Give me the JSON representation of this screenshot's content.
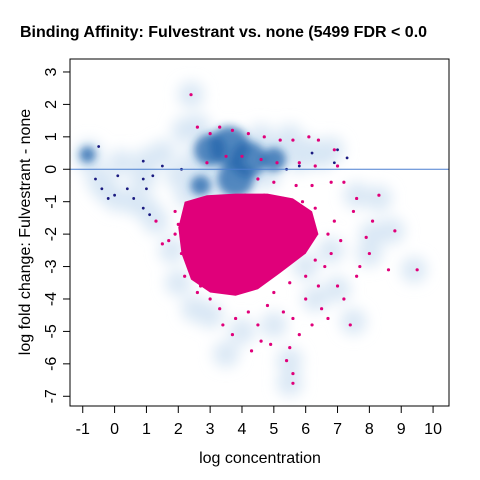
{
  "chart_data": {
    "type": "scatter",
    "title": "Binding Affinity: Fulvestrant vs. none (5499 FDR < 0.0",
    "xlabel": "log concentration",
    "ylabel": "log fold change: Fulvestrant - none",
    "xlim": [
      -1.4,
      10.5
    ],
    "ylim": [
      -7.3,
      3.4
    ],
    "x_ticks": [
      "-1",
      "0",
      "1",
      "2",
      "3",
      "4",
      "5",
      "6",
      "7",
      "8",
      "9",
      "10"
    ],
    "y_ticks": [
      "3",
      "2",
      "1",
      "0",
      "-1",
      "-2",
      "-3",
      "-4",
      "-5",
      "-6",
      "-7"
    ],
    "reference_line_y": 0,
    "grid": false,
    "legend": "none",
    "colors": {
      "density_light": "#d6e6f4",
      "density_dark": "#2166ac",
      "significant_points": "#e0007a",
      "nonsignificant_points": "#1a1a80",
      "reference_line": "#4a7fd0"
    },
    "series": [
      {
        "role": "density",
        "points": [
          [
            -0.8,
            0.5
          ],
          [
            -0.85,
            0.35
          ],
          [
            0.05,
            -0.9
          ],
          [
            0.6,
            -1.0
          ],
          [
            1.0,
            -1.2
          ],
          [
            2.3,
            -0.8
          ],
          [
            2.5,
            0.3
          ],
          [
            3.0,
            0.3
          ],
          [
            3.3,
            0.8
          ],
          [
            3.6,
            0.9
          ],
          [
            4.0,
            0.7
          ],
          [
            4.4,
            0.5
          ],
          [
            3.2,
            0.0
          ],
          [
            3.7,
            -0.2
          ],
          [
            4.2,
            -0.3
          ],
          [
            4.8,
            -0.2
          ],
          [
            5.0,
            0.6
          ],
          [
            5.8,
            0.3
          ],
          [
            6.5,
            0.4
          ],
          [
            2.7,
            -0.4
          ],
          [
            3.1,
            -0.6
          ],
          [
            2.4,
            2.3
          ],
          [
            2.0,
            -0.2
          ],
          [
            8.0,
            -2.6
          ],
          [
            7.6,
            -0.8
          ],
          [
            8.3,
            -0.9
          ],
          [
            6.0,
            -3.0
          ],
          [
            6.8,
            -2.5
          ],
          [
            6.3,
            -4.0
          ],
          [
            7.0,
            -3.7
          ],
          [
            8.1,
            -2.0
          ],
          [
            8.7,
            -1.9
          ],
          [
            9.4,
            -3.1
          ],
          [
            5.5,
            -5.9
          ],
          [
            5.5,
            -6.6
          ],
          [
            4.0,
            -5.0
          ],
          [
            3.5,
            -5.7
          ],
          [
            1.3,
            -1.6
          ],
          [
            1.8,
            -2.5
          ],
          [
            2.0,
            -3.5
          ],
          [
            2.5,
            -4.3
          ],
          [
            3.0,
            -4.5
          ],
          [
            5.0,
            -4.8
          ],
          [
            7.5,
            -4.7
          ],
          [
            6.1,
            0.6
          ],
          [
            5.2,
            0.5
          ],
          [
            1.5,
            0.5
          ],
          [
            0.9,
            -0.3
          ],
          [
            1.0,
            0.25
          ],
          [
            0.2,
            0.2
          ],
          [
            -0.5,
            -0.3
          ],
          [
            -0.3,
            -0.6
          ],
          [
            2.2,
            1.2
          ],
          [
            2.6,
            1.3
          ],
          [
            4.6,
            1.0
          ],
          [
            5.5,
            1.0
          ],
          [
            6.8,
            0.6
          ]
        ]
      },
      {
        "role": "significant",
        "points": [
          [
            2.4,
            2.3
          ],
          [
            2.6,
            1.3
          ],
          [
            3.0,
            1.1
          ],
          [
            3.3,
            1.3
          ],
          [
            3.7,
            1.2
          ],
          [
            4.2,
            1.1
          ],
          [
            4.7,
            1.0
          ],
          [
            5.2,
            0.9
          ],
          [
            5.6,
            0.9
          ],
          [
            6.1,
            1.0
          ],
          [
            6.4,
            0.9
          ],
          [
            6.9,
            0.6
          ],
          [
            2.9,
            0.2
          ],
          [
            3.5,
            0.4
          ],
          [
            4.0,
            0.4
          ],
          [
            4.6,
            0.3
          ],
          [
            5.1,
            0.2
          ],
          [
            5.8,
            0.2
          ],
          [
            6.3,
            0.1
          ],
          [
            7.0,
            0.1
          ],
          [
            4.5,
            -0.3
          ],
          [
            5.0,
            -0.4
          ],
          [
            5.7,
            -0.5
          ],
          [
            6.2,
            -0.5
          ],
          [
            6.8,
            -0.4
          ],
          [
            7.2,
            -0.4
          ],
          [
            7.6,
            -0.9
          ],
          [
            8.3,
            -0.8
          ],
          [
            8.1,
            -1.6
          ],
          [
            8.8,
            -1.9
          ],
          [
            7.5,
            -1.3
          ],
          [
            7.9,
            -2.1
          ],
          [
            8.0,
            -2.6
          ],
          [
            7.7,
            -3.0
          ],
          [
            7.6,
            -3.3
          ],
          [
            8.6,
            -3.1
          ],
          [
            9.5,
            -3.1
          ],
          [
            7.0,
            -3.6
          ],
          [
            7.2,
            -4.0
          ],
          [
            6.5,
            -4.3
          ],
          [
            6.2,
            -4.8
          ],
          [
            5.8,
            -5.1
          ],
          [
            5.5,
            -5.5
          ],
          [
            5.4,
            -5.9
          ],
          [
            5.6,
            -6.3
          ],
          [
            5.6,
            -6.6
          ],
          [
            4.9,
            -5.4
          ],
          [
            4.3,
            -5.6
          ],
          [
            4.6,
            -5.3
          ],
          [
            7.4,
            -4.8
          ],
          [
            6.7,
            -4.6
          ],
          [
            2.2,
            -1.4
          ],
          [
            2.0,
            -1.7
          ],
          [
            1.9,
            -2.0
          ],
          [
            1.7,
            -2.2
          ],
          [
            1.3,
            -1.6
          ],
          [
            1.5,
            -2.3
          ],
          [
            2.1,
            -2.6
          ],
          [
            2.4,
            -3.0
          ],
          [
            2.7,
            -3.6
          ],
          [
            3.0,
            -4.0
          ],
          [
            3.3,
            -4.3
          ],
          [
            3.8,
            -4.6
          ],
          [
            4.2,
            -4.4
          ],
          [
            4.8,
            -4.2
          ],
          [
            5.3,
            -4.4
          ],
          [
            5.6,
            -4.6
          ],
          [
            6.0,
            -4.0
          ],
          [
            6.4,
            -3.6
          ],
          [
            6.6,
            -3.0
          ],
          [
            6.8,
            -2.6
          ],
          [
            7.1,
            -2.2
          ],
          [
            6.9,
            -1.6
          ],
          [
            6.3,
            -1.2
          ],
          [
            5.9,
            -1.0
          ],
          [
            5.3,
            -0.9
          ],
          [
            4.7,
            -0.8
          ],
          [
            4.1,
            -0.8
          ],
          [
            3.5,
            -0.9
          ],
          [
            3.0,
            -1.0
          ],
          [
            2.6,
            -1.1
          ],
          [
            2.3,
            -1.2
          ],
          [
            1.9,
            -1.3
          ],
          [
            2.2,
            -3.3
          ],
          [
            2.6,
            -3.8
          ],
          [
            3.4,
            -4.8
          ],
          [
            3.7,
            -5.1
          ],
          [
            4.5,
            -4.8
          ],
          [
            5.0,
            -3.8
          ],
          [
            5.5,
            -3.5
          ],
          [
            6.0,
            -3.3
          ],
          [
            6.3,
            -2.8
          ],
          [
            6.7,
            -2.0
          ]
        ]
      },
      {
        "role": "nonsignificant",
        "points": [
          [
            -0.5,
            0.7
          ],
          [
            -0.6,
            -0.3
          ],
          [
            -0.4,
            -0.6
          ],
          [
            -0.2,
            -0.9
          ],
          [
            0.0,
            -0.8
          ],
          [
            0.1,
            -0.2
          ],
          [
            0.4,
            -0.6
          ],
          [
            0.6,
            -0.9
          ],
          [
            0.9,
            0.25
          ],
          [
            0.9,
            -0.3
          ],
          [
            1.0,
            -0.6
          ],
          [
            1.2,
            -0.2
          ],
          [
            2.1,
            0.0
          ],
          [
            1.5,
            0.1
          ],
          [
            6.2,
            0.5
          ],
          [
            7.0,
            0.6
          ],
          [
            7.3,
            0.35
          ],
          [
            5.8,
            0.1
          ],
          [
            5.4,
            0.0
          ],
          [
            6.9,
            0.2
          ],
          [
            0.9,
            -1.2
          ],
          [
            1.1,
            -1.4
          ]
        ]
      }
    ]
  }
}
